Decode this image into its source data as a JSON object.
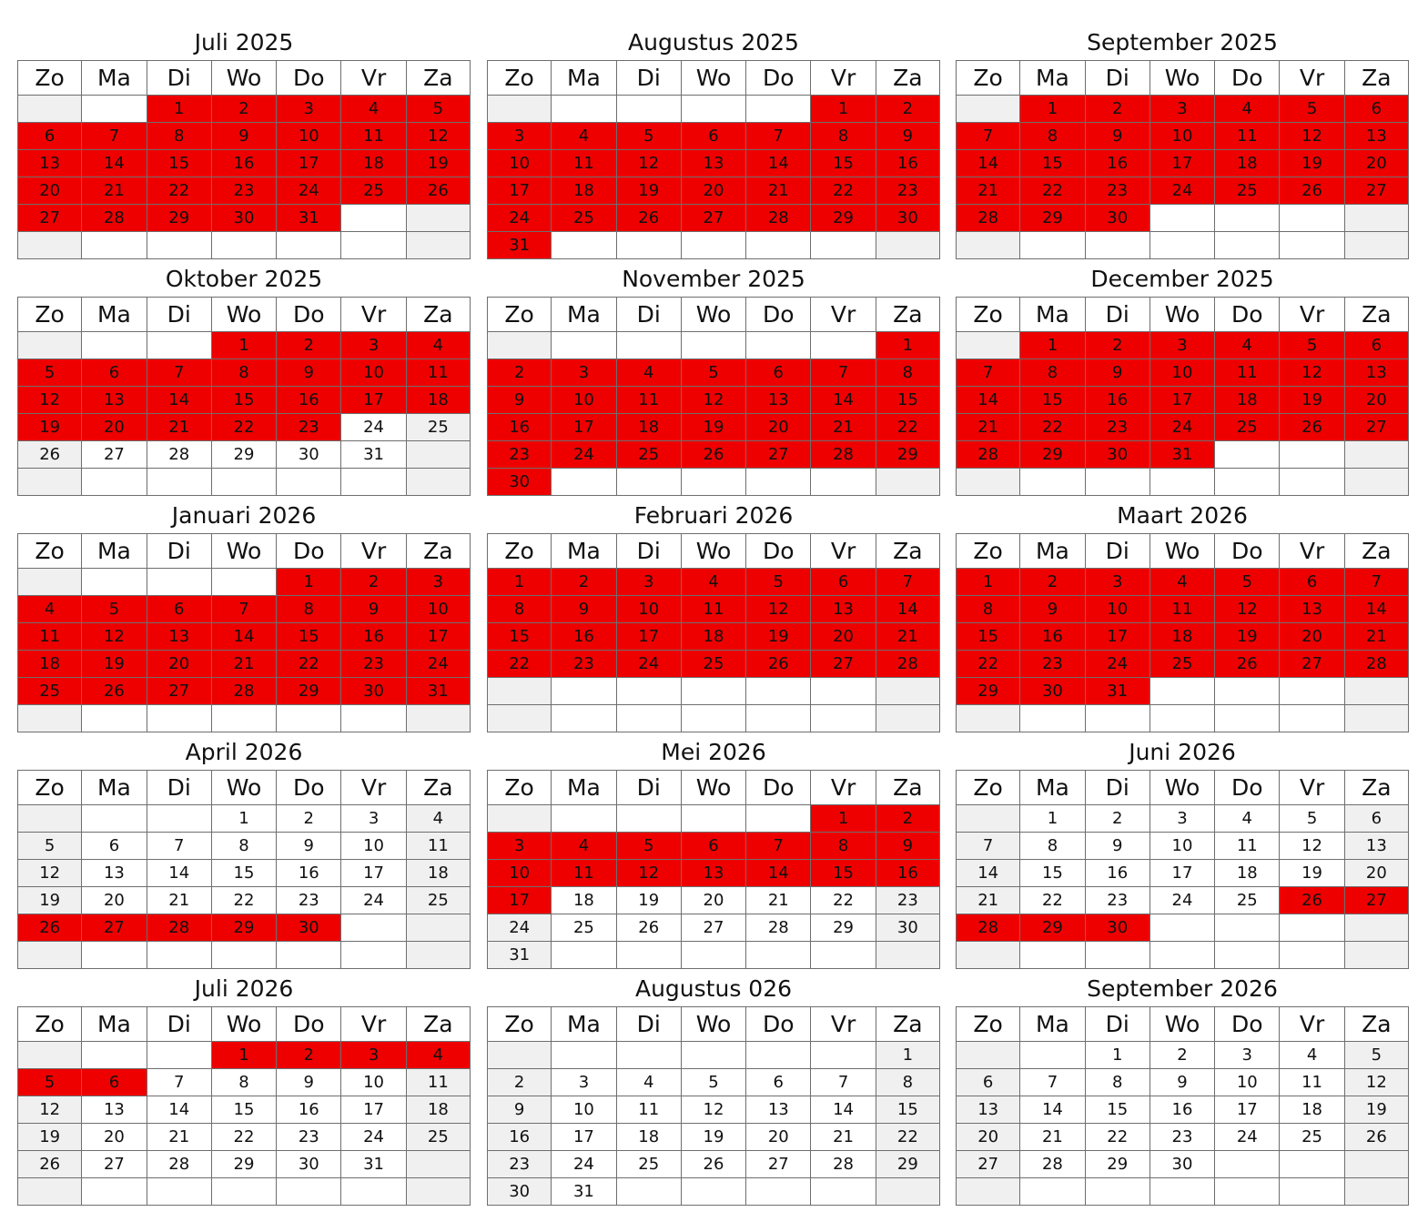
{
  "weekdays": [
    "Zo",
    "Ma",
    "Di",
    "Wo",
    "Do",
    "Vr",
    "Za"
  ],
  "highlight_color": "#ee0000",
  "weekend_color": "#f0f0f0",
  "months": [
    {
      "title": "Juli 2025",
      "offset": 2,
      "days": 31,
      "highlighted": [
        [
          1,
          31
        ]
      ]
    },
    {
      "title": "Augustus 2025",
      "offset": 5,
      "days": 31,
      "highlighted": [
        [
          1,
          31
        ]
      ]
    },
    {
      "title": "September 2025",
      "offset": 1,
      "days": 30,
      "highlighted": [
        [
          1,
          30
        ]
      ]
    },
    {
      "title": "Oktober 2025",
      "offset": 3,
      "days": 31,
      "highlighted": [
        [
          1,
          23
        ]
      ]
    },
    {
      "title": "November 2025",
      "offset": 6,
      "days": 30,
      "highlighted": [
        [
          1,
          30
        ]
      ]
    },
    {
      "title": "December 2025",
      "offset": 1,
      "days": 31,
      "highlighted": [
        [
          1,
          31
        ]
      ]
    },
    {
      "title": "Januari 2026",
      "offset": 4,
      "days": 31,
      "highlighted": [
        [
          1,
          31
        ]
      ]
    },
    {
      "title": "Februari 2026",
      "offset": 0,
      "days": 28,
      "highlighted": [
        [
          1,
          28
        ]
      ]
    },
    {
      "title": "Maart 2026",
      "offset": 0,
      "days": 31,
      "highlighted": [
        [
          1,
          31
        ]
      ]
    },
    {
      "title": "April 2026",
      "offset": 3,
      "days": 30,
      "highlighted": [
        [
          26,
          30
        ]
      ]
    },
    {
      "title": "Mei 2026",
      "offset": 5,
      "days": 31,
      "highlighted": [
        [
          1,
          17
        ]
      ]
    },
    {
      "title": "Juni 2026",
      "offset": 1,
      "days": 30,
      "highlighted": [
        [
          26,
          30
        ]
      ]
    },
    {
      "title": "Juli 2026",
      "offset": 3,
      "days": 31,
      "highlighted": [
        [
          1,
          6
        ]
      ]
    },
    {
      "title": "Augustus 026",
      "offset": 6,
      "days": 31,
      "highlighted": []
    },
    {
      "title": "September 2026",
      "offset": 2,
      "days": 30,
      "highlighted": []
    }
  ]
}
